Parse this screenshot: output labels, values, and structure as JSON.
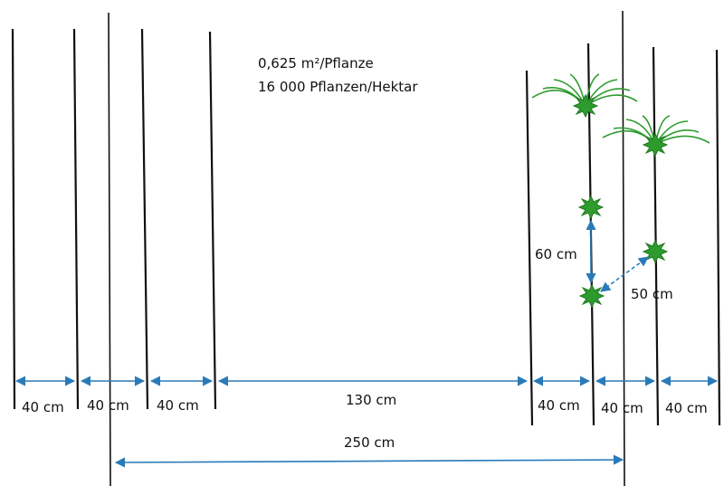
{
  "info": {
    "area_per_plant": "0,625 m²/Pflanze",
    "plants_per_hectare": "16 000 Pflanzen/Hektar"
  },
  "spacing_labels": {
    "s1": "40 cm",
    "s2": "40 cm",
    "s3": "40 cm",
    "gap": "130 cm",
    "s5": "40 cm",
    "s6": "40 cm",
    "s7": "40 cm"
  },
  "total_width": "250 cm",
  "in_row_distance": "60 cm",
  "diagonal_distance": "50 cm",
  "colors": {
    "dimension": "#2a7ab8",
    "plant": "#2e9b2e",
    "line": "#111111"
  }
}
